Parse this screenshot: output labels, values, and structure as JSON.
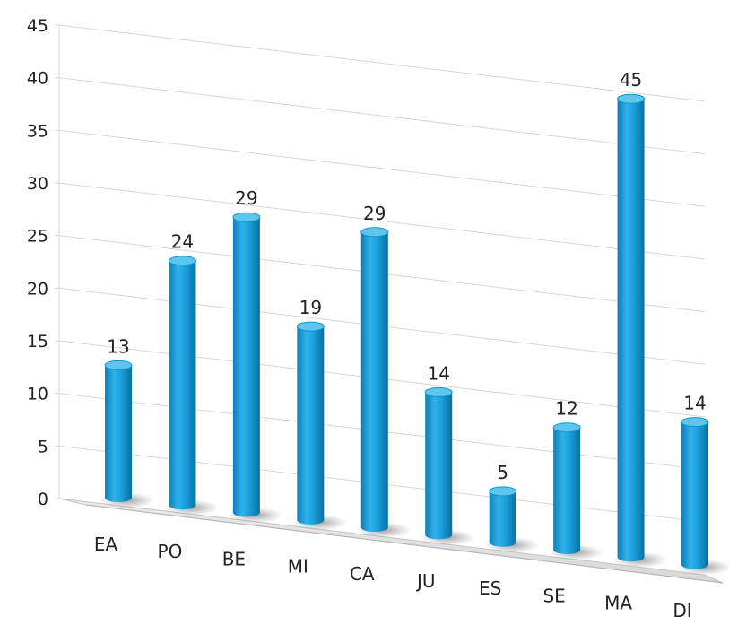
{
  "chart_data": {
    "type": "bar",
    "style": "3d-cylinder",
    "categories": [
      "EA",
      "PO",
      "BE",
      "MI",
      "CA",
      "JU",
      "ES",
      "SE",
      "MA",
      "DI"
    ],
    "values": [
      13,
      24,
      29,
      19,
      29,
      14,
      5,
      12,
      45,
      14
    ],
    "data_labels": [
      "13",
      "24",
      "29",
      "19",
      "29",
      "14",
      "5",
      "12",
      "45",
      "14"
    ],
    "y_ticks": [
      "0",
      "5",
      "10",
      "15",
      "20",
      "25",
      "30",
      "35",
      "40",
      "45"
    ],
    "ylim": [
      0,
      45
    ],
    "grid": true,
    "legend": "none",
    "bar_color": "#1aa0dc"
  }
}
